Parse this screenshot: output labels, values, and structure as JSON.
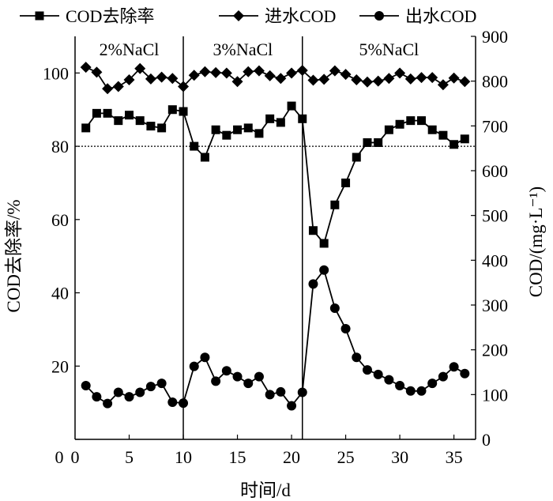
{
  "chart_data": {
    "type": "line",
    "xlabel": "时间/d",
    "ylabel_left": "COD去除率/%",
    "ylabel_right": "COD/(mg·L⁻¹)",
    "xlim": [
      0,
      37
    ],
    "ylim_left": [
      0,
      110
    ],
    "ylim_right": [
      0,
      900
    ],
    "xticks": [
      "0",
      "5",
      "10",
      "15",
      "20",
      "25",
      "30",
      "35"
    ],
    "yticks_left": [
      "0",
      "20",
      "40",
      "60",
      "80",
      "100"
    ],
    "yticks_right": [
      "0",
      "100",
      "200",
      "300",
      "400",
      "500",
      "600",
      "700",
      "800",
      "900"
    ],
    "reference_line": {
      "axis": "left",
      "y": 80,
      "style": "dotted"
    },
    "phases": [
      {
        "label": "2%NaCl",
        "x_start": 0,
        "x_end": 10
      },
      {
        "label": "3%NaCl",
        "x_start": 10,
        "x_end": 21
      },
      {
        "label": "5%NaCl",
        "x_start": 21,
        "x_end": 37
      }
    ],
    "series": [
      {
        "name": "COD去除率",
        "axis": "left",
        "marker": "square",
        "x": [
          1,
          2,
          3,
          4,
          5,
          6,
          7,
          8,
          9,
          10,
          11,
          12,
          13,
          14,
          15,
          16,
          17,
          18,
          19,
          20,
          21,
          22,
          23,
          24,
          25,
          26,
          27,
          28,
          29,
          30,
          31,
          32,
          33,
          34,
          35,
          36
        ],
        "values": [
          85,
          89,
          89,
          87,
          88.5,
          87,
          85.5,
          85,
          90,
          89.5,
          80,
          77,
          84.5,
          83,
          84.5,
          85,
          83.5,
          87.5,
          86.5,
          91,
          87.5,
          57,
          53.5,
          64,
          70,
          77,
          81,
          81,
          84.5,
          86,
          87,
          87,
          84.5,
          83,
          80.5,
          82
        ]
      },
      {
        "name": "进水COD",
        "axis": "right",
        "marker": "diamond",
        "x": [
          1,
          2,
          3,
          4,
          5,
          6,
          7,
          8,
          9,
          10,
          11,
          12,
          13,
          14,
          15,
          16,
          17,
          18,
          19,
          20,
          21,
          22,
          23,
          24,
          25,
          26,
          27,
          28,
          29,
          30,
          31,
          32,
          33,
          34,
          35,
          36
        ],
        "values": [
          831,
          820,
          783,
          788,
          803,
          828,
          805,
          809,
          806,
          788,
          813,
          821,
          819,
          818,
          799,
          821,
          823,
          812,
          806,
          818,
          824,
          802,
          804,
          823,
          815,
          803,
          798,
          800,
          806,
          818,
          805,
          808,
          808,
          792,
          807,
          799
        ]
      },
      {
        "name": "出水COD",
        "axis": "right",
        "marker": "circle",
        "x": [
          1,
          2,
          3,
          4,
          5,
          6,
          7,
          8,
          9,
          10,
          11,
          12,
          13,
          14,
          15,
          16,
          17,
          18,
          19,
          20,
          21,
          22,
          23,
          24,
          25,
          26,
          27,
          28,
          29,
          30,
          31,
          32,
          33,
          34,
          35,
          36
        ],
        "values": [
          120,
          95,
          80,
          105,
          95,
          105,
          118,
          125,
          83,
          81,
          163,
          183,
          130,
          153,
          140,
          125,
          140,
          100,
          106,
          75,
          105,
          347,
          378,
          293,
          247,
          183,
          155,
          145,
          133,
          120,
          108,
          108,
          125,
          140,
          162,
          147
        ]
      }
    ]
  }
}
